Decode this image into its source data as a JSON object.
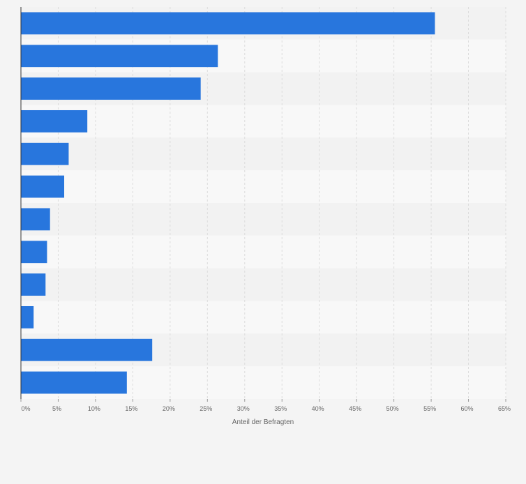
{
  "chart_data": {
    "type": "bar",
    "orientation": "horizontal",
    "categories": [
      "",
      "",
      "",
      "",
      "",
      "",
      "",
      "",
      "",
      "",
      "",
      ""
    ],
    "values": [
      55.5,
      26.4,
      24.1,
      8.9,
      6.4,
      5.8,
      3.9,
      3.5,
      3.3,
      1.7,
      17.6,
      14.2
    ],
    "xlabel": "Anteil der Befragten",
    "ylabel": "",
    "xlim": [
      0,
      65
    ],
    "x_ticks": [
      "0%",
      "5%",
      "10%",
      "15%",
      "20%",
      "25%",
      "30%",
      "35%",
      "40%",
      "45%",
      "50%",
      "55%",
      "60%",
      "65%"
    ],
    "grid": true,
    "bar_color": "#2876dd",
    "band_colors": [
      "#f2f2f2",
      "#f8f8f8"
    ],
    "gridline_color": "#dcdcdc"
  }
}
